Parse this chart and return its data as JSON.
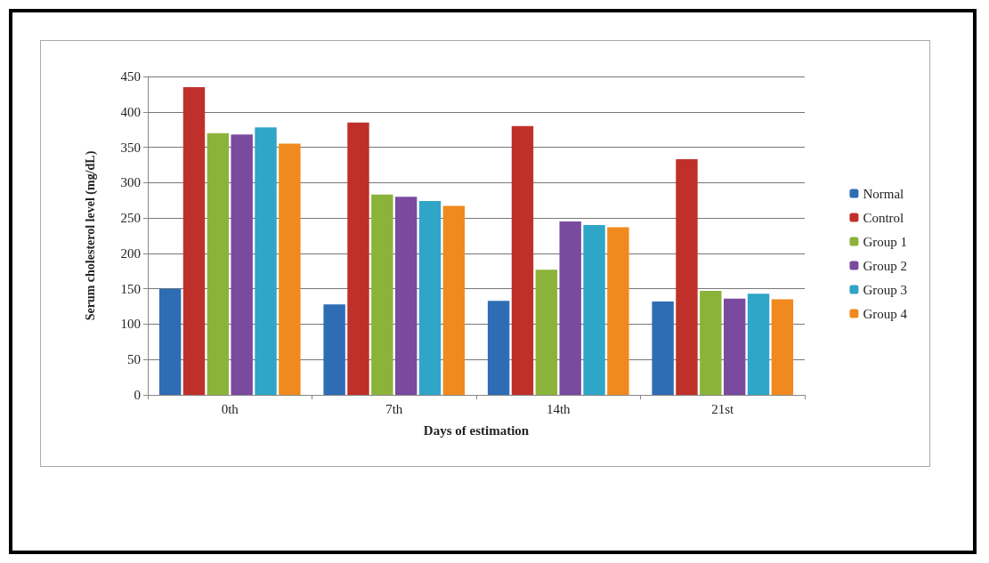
{
  "chart_data": {
    "type": "bar",
    "xlabel": "Days of estimation",
    "ylabel": "Serum cholesterol level (mg/dL)",
    "categories": [
      "0th",
      "7th",
      "14th",
      "21st"
    ],
    "series": [
      {
        "name": "Normal",
        "color": "#2e6db4",
        "values": [
          150,
          128,
          133,
          132
        ]
      },
      {
        "name": "Control",
        "color": "#c0302a",
        "values": [
          435,
          385,
          380,
          333
        ]
      },
      {
        "name": "Group 1",
        "color": "#8bb33a",
        "values": [
          370,
          283,
          177,
          147
        ]
      },
      {
        "name": "Group 2",
        "color": "#7a4a9e",
        "values": [
          368,
          280,
          245,
          136
        ]
      },
      {
        "name": "Group 3",
        "color": "#2fa5c8",
        "values": [
          378,
          274,
          240,
          143
        ]
      },
      {
        "name": "Group 4",
        "color": "#f08a1e",
        "values": [
          355,
          267,
          237,
          135
        ]
      }
    ],
    "ylim": [
      0,
      450
    ],
    "yticks": [
      0,
      50,
      100,
      150,
      200,
      250,
      300,
      350,
      400,
      450
    ],
    "grid": "y",
    "legend": "right"
  }
}
